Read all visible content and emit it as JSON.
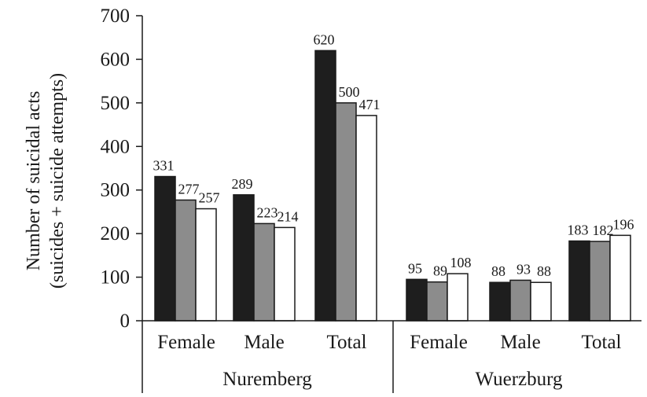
{
  "chart_data": {
    "type": "bar",
    "ylabel_line1": "Number of suicidal acts",
    "ylabel_line2": "(suicides + suicide attempts)",
    "ylim": [
      0,
      700
    ],
    "yticks": [
      0,
      100,
      200,
      300,
      400,
      500,
      600,
      700
    ],
    "grid": false,
    "legend": "none",
    "series_colors": [
      "#1e1e1e",
      "#8c8c8c",
      "#ffffff"
    ],
    "groups": [
      {
        "name": "Nuremberg",
        "categories": [
          {
            "label": "Female",
            "values": [
              331,
              277,
              257
            ]
          },
          {
            "label": "Male",
            "values": [
              289,
              223,
              214
            ]
          },
          {
            "label": "Total",
            "values": [
              620,
              500,
              471
            ]
          }
        ]
      },
      {
        "name": "Wuerzburg",
        "categories": [
          {
            "label": "Female",
            "values": [
              95,
              89,
              108
            ]
          },
          {
            "label": "Male",
            "values": [
              88,
              93,
              88
            ]
          },
          {
            "label": "Total",
            "values": [
              183,
              182,
              196
            ]
          }
        ]
      }
    ]
  }
}
